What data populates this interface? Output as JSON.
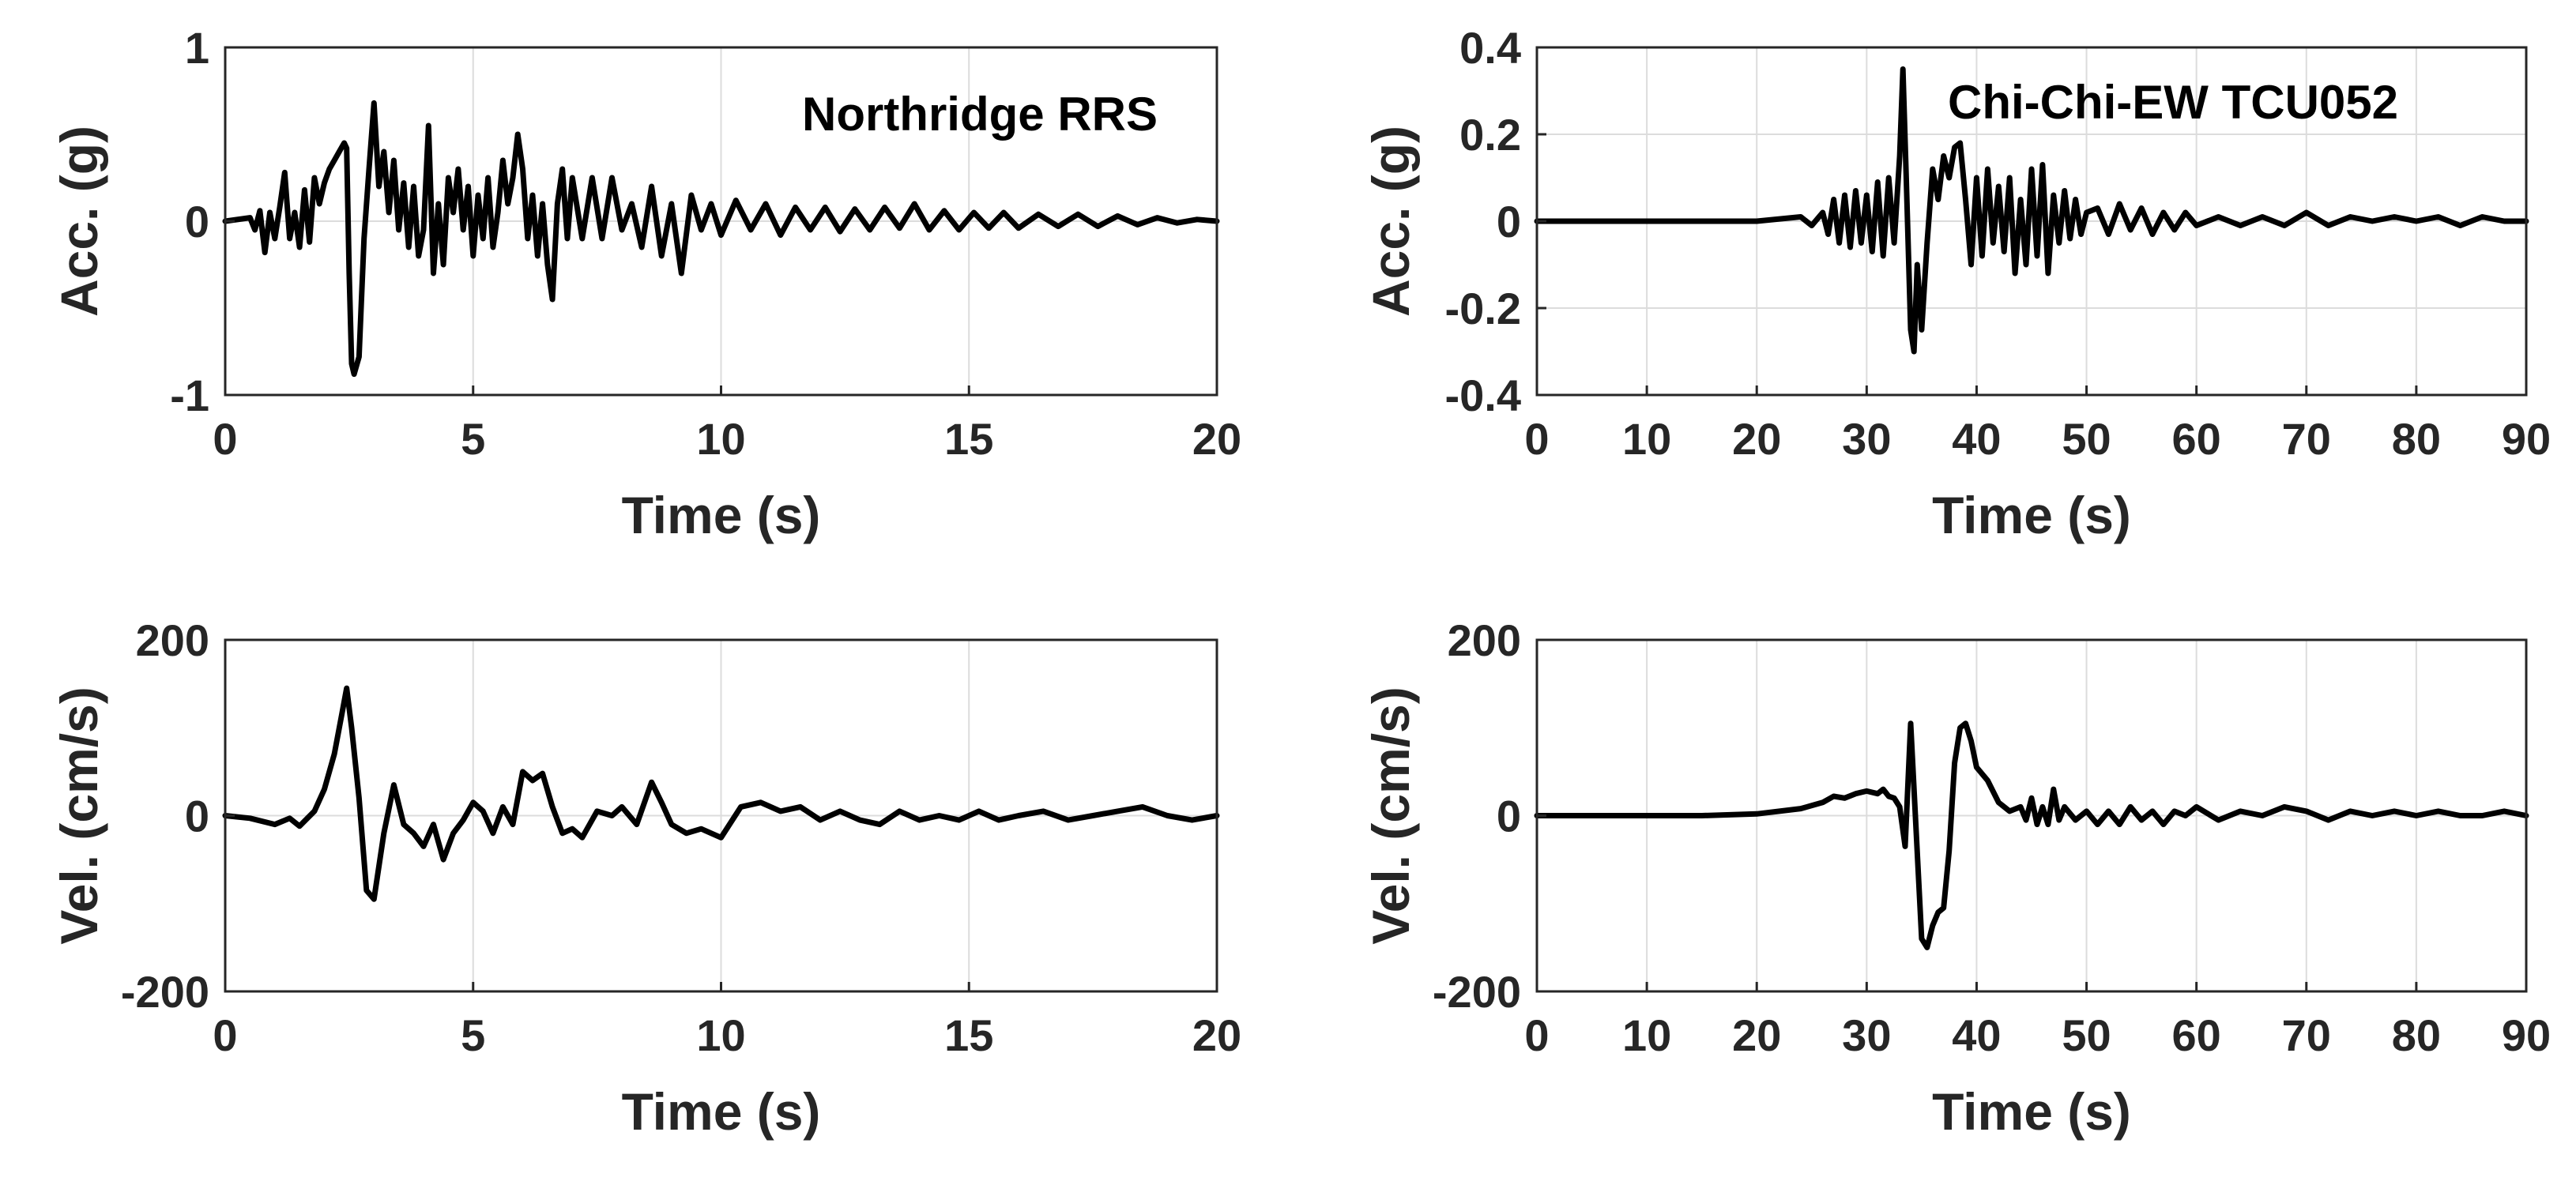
{
  "chart_data": [
    {
      "type": "line",
      "annotation": "Northridge RRS",
      "xlabel": "Time (s)",
      "ylabel": "Acc. (g)",
      "xlim": [
        0,
        20
      ],
      "ylim": [
        -1,
        1
      ],
      "xticks": [
        0,
        5,
        10,
        15,
        20
      ],
      "xtick_labels": [
        "0",
        "5",
        "10",
        "15",
        "20"
      ],
      "yticks": [
        -1,
        0,
        1
      ],
      "ytick_labels": [
        "-1",
        "0",
        "1"
      ],
      "grid": true,
      "series": [
        {
          "x": [
            0,
            0.5,
            0.6,
            0.7,
            0.8,
            0.9,
            1.0,
            1.1,
            1.2,
            1.3,
            1.4,
            1.5,
            1.6,
            1.7,
            1.8,
            1.9,
            2.0,
            2.1,
            2.2,
            2.3,
            2.4,
            2.45,
            2.5,
            2.55,
            2.6,
            2.7,
            2.8,
            2.9,
            3.0,
            3.1,
            3.2,
            3.3,
            3.4,
            3.5,
            3.6,
            3.7,
            3.8,
            3.9,
            4.0,
            4.1,
            4.2,
            4.3,
            4.4,
            4.5,
            4.6,
            4.7,
            4.8,
            4.9,
            5.0,
            5.1,
            5.2,
            5.3,
            5.4,
            5.5,
            5.6,
            5.7,
            5.8,
            5.9,
            6.0,
            6.1,
            6.2,
            6.3,
            6.4,
            6.5,
            6.6,
            6.7,
            6.8,
            6.9,
            7.0,
            7.2,
            7.4,
            7.6,
            7.8,
            8.0,
            8.2,
            8.4,
            8.6,
            8.8,
            9.0,
            9.2,
            9.4,
            9.6,
            9.8,
            10.0,
            10.3,
            10.6,
            10.9,
            11.2,
            11.5,
            11.8,
            12.1,
            12.4,
            12.7,
            13.0,
            13.3,
            13.6,
            13.9,
            14.2,
            14.5,
            14.8,
            15.1,
            15.4,
            15.7,
            16.0,
            16.4,
            16.8,
            17.2,
            17.6,
            18.0,
            18.4,
            18.8,
            19.2,
            19.6,
            20.0
          ],
          "y": [
            0,
            0.02,
            -0.05,
            0.06,
            -0.18,
            0.05,
            -0.1,
            0.08,
            0.28,
            -0.1,
            0.05,
            -0.15,
            0.18,
            -0.12,
            0.25,
            0.1,
            0.22,
            0.3,
            0.35,
            0.4,
            0.45,
            0.42,
            -0.3,
            -0.82,
            -0.88,
            -0.78,
            -0.1,
            0.3,
            0.68,
            0.2,
            0.4,
            0.05,
            0.35,
            -0.05,
            0.22,
            -0.15,
            0.2,
            -0.2,
            -0.05,
            0.55,
            -0.3,
            0.1,
            -0.25,
            0.25,
            0.05,
            0.3,
            -0.05,
            0.2,
            -0.2,
            0.15,
            -0.1,
            0.25,
            -0.15,
            0.05,
            0.35,
            0.1,
            0.25,
            0.5,
            0.3,
            -0.1,
            0.15,
            -0.2,
            0.1,
            -0.25,
            -0.45,
            0.1,
            0.3,
            -0.1,
            0.25,
            -0.1,
            0.25,
            -0.1,
            0.25,
            -0.05,
            0.1,
            -0.15,
            0.2,
            -0.2,
            0.1,
            -0.3,
            0.15,
            -0.05,
            0.1,
            -0.08,
            0.12,
            -0.05,
            0.1,
            -0.08,
            0.08,
            -0.05,
            0.08,
            -0.06,
            0.07,
            -0.05,
            0.08,
            -0.04,
            0.1,
            -0.05,
            0.06,
            -0.05,
            0.05,
            -0.04,
            0.05,
            -0.04,
            0.04,
            -0.03,
            0.04,
            -0.03,
            0.03,
            -0.02,
            0.02,
            -0.01,
            0.01,
            0
          ]
        }
      ]
    },
    {
      "type": "line",
      "annotation": "Chi-Chi-EW TCU052",
      "xlabel": "Time (s)",
      "ylabel": "Acc. (g)",
      "xlim": [
        0,
        90
      ],
      "ylim": [
        -0.4,
        0.4
      ],
      "xticks": [
        0,
        10,
        20,
        30,
        40,
        50,
        60,
        70,
        80,
        90
      ],
      "xtick_labels": [
        "0",
        "10",
        "20",
        "30",
        "40",
        "50",
        "60",
        "70",
        "80",
        "90"
      ],
      "yticks": [
        -0.4,
        -0.2,
        0,
        0.2,
        0.4
      ],
      "ytick_labels": [
        "-0.4",
        "-0.2",
        "0",
        "0.2",
        "0.4"
      ],
      "grid": true,
      "series": [
        {
          "x": [
            0,
            20,
            24,
            25,
            26,
            26.5,
            27,
            27.5,
            28,
            28.5,
            29,
            29.5,
            30,
            30.5,
            31,
            31.5,
            32,
            32.5,
            33,
            33.3,
            33.6,
            34,
            34.3,
            34.6,
            35,
            35.5,
            36,
            36.5,
            37,
            37.5,
            38,
            38.5,
            39,
            39.5,
            40,
            40.5,
            41,
            41.5,
            42,
            42.5,
            43,
            43.5,
            44,
            44.5,
            45,
            45.5,
            46,
            46.5,
            47,
            47.5,
            48,
            48.5,
            49,
            49.5,
            50,
            51,
            52,
            53,
            54,
            55,
            56,
            57,
            58,
            59,
            60,
            62,
            64,
            66,
            68,
            70,
            72,
            74,
            76,
            78,
            80,
            82,
            84,
            86,
            88,
            90
          ],
          "y": [
            0,
            0,
            0.01,
            -0.01,
            0.02,
            -0.03,
            0.05,
            -0.05,
            0.06,
            -0.06,
            0.07,
            -0.05,
            0.06,
            -0.07,
            0.09,
            -0.08,
            0.1,
            -0.05,
            0.15,
            0.35,
            0.1,
            -0.25,
            -0.3,
            -0.1,
            -0.25,
            -0.05,
            0.12,
            0.05,
            0.15,
            0.1,
            0.17,
            0.18,
            0.05,
            -0.1,
            0.1,
            -0.08,
            0.12,
            -0.05,
            0.08,
            -0.07,
            0.1,
            -0.12,
            0.05,
            -0.1,
            0.12,
            -0.08,
            0.13,
            -0.12,
            0.06,
            -0.05,
            0.07,
            -0.04,
            0.05,
            -0.03,
            0.02,
            0.03,
            -0.03,
            0.04,
            -0.02,
            0.03,
            -0.03,
            0.02,
            -0.02,
            0.02,
            -0.01,
            0.01,
            -0.01,
            0.01,
            -0.01,
            0.02,
            -0.01,
            0.01,
            0,
            0.01,
            0,
            0.01,
            -0.01,
            0.01,
            0,
            0
          ]
        }
      ]
    },
    {
      "type": "line",
      "xlabel": "Time (s)",
      "ylabel": "Vel. (cm/s)",
      "xlim": [
        0,
        20
      ],
      "ylim": [
        -200,
        200
      ],
      "xticks": [
        0,
        5,
        10,
        15,
        20
      ],
      "xtick_labels": [
        "0",
        "5",
        "10",
        "15",
        "20"
      ],
      "yticks": [
        -200,
        0,
        200
      ],
      "ytick_labels": [
        "-200",
        "0",
        "200"
      ],
      "grid": true,
      "series": [
        {
          "x": [
            0,
            0.5,
            1.0,
            1.3,
            1.5,
            1.8,
            2.0,
            2.2,
            2.35,
            2.45,
            2.55,
            2.7,
            2.85,
            3.0,
            3.2,
            3.4,
            3.6,
            3.8,
            4.0,
            4.2,
            4.4,
            4.6,
            4.8,
            5.0,
            5.2,
            5.4,
            5.6,
            5.8,
            6.0,
            6.2,
            6.4,
            6.6,
            6.8,
            7.0,
            7.2,
            7.5,
            7.8,
            8.0,
            8.3,
            8.6,
            8.8,
            9.0,
            9.3,
            9.6,
            10.0,
            10.4,
            10.8,
            11.2,
            11.6,
            12.0,
            12.4,
            12.8,
            13.2,
            13.6,
            14.0,
            14.4,
            14.8,
            15.2,
            15.6,
            16.0,
            16.5,
            17.0,
            17.5,
            18.0,
            18.5,
            19.0,
            19.5,
            20.0
          ],
          "y": [
            0,
            -3,
            -10,
            -3,
            -12,
            5,
            30,
            70,
            115,
            145,
            100,
            20,
            -85,
            -95,
            -20,
            35,
            -10,
            -20,
            -35,
            -10,
            -50,
            -20,
            -5,
            15,
            5,
            -20,
            10,
            -10,
            50,
            40,
            48,
            10,
            -20,
            -15,
            -25,
            5,
            0,
            10,
            -10,
            38,
            15,
            -10,
            -20,
            -15,
            -25,
            10,
            15,
            5,
            10,
            -5,
            5,
            -5,
            -10,
            5,
            -5,
            0,
            -5,
            5,
            -5,
            0,
            5,
            -5,
            0,
            5,
            10,
            0,
            -5,
            0
          ]
        }
      ]
    },
    {
      "type": "line",
      "xlabel": "Time (s)",
      "ylabel": "Vel. (cm/s)",
      "xlim": [
        0,
        90
      ],
      "ylim": [
        -200,
        200
      ],
      "xticks": [
        0,
        10,
        20,
        30,
        40,
        50,
        60,
        70,
        80,
        90
      ],
      "xtick_labels": [
        "0",
        "10",
        "20",
        "30",
        "40",
        "50",
        "60",
        "70",
        "80",
        "90"
      ],
      "yticks": [
        -200,
        0,
        200
      ],
      "ytick_labels": [
        "-200",
        "0",
        "200"
      ],
      "grid": true,
      "series": [
        {
          "x": [
            0,
            15,
            20,
            24,
            26,
            27,
            28,
            29,
            30,
            31,
            31.5,
            32,
            32.5,
            33,
            33.5,
            34,
            35,
            35.5,
            36,
            36.5,
            37,
            37.5,
            38,
            38.5,
            39,
            39.5,
            40,
            41,
            42,
            43,
            44,
            44.5,
            45,
            45.5,
            46,
            46.5,
            47,
            47.5,
            48,
            49,
            50,
            51,
            52,
            53,
            54,
            55,
            56,
            57,
            58,
            59,
            60,
            62,
            64,
            66,
            68,
            70,
            72,
            74,
            76,
            78,
            80,
            82,
            84,
            86,
            88,
            90
          ],
          "y": [
            0,
            0,
            2,
            8,
            15,
            22,
            20,
            25,
            28,
            25,
            30,
            22,
            20,
            10,
            -35,
            105,
            -140,
            -150,
            -125,
            -110,
            -105,
            -40,
            60,
            100,
            105,
            85,
            55,
            40,
            15,
            5,
            10,
            -5,
            20,
            -10,
            10,
            -10,
            30,
            -5,
            10,
            -5,
            5,
            -10,
            5,
            -10,
            10,
            -5,
            5,
            -10,
            5,
            0,
            10,
            -5,
            5,
            0,
            10,
            5,
            -5,
            5,
            0,
            5,
            0,
            5,
            0,
            0,
            5,
            0
          ]
        }
      ]
    }
  ]
}
